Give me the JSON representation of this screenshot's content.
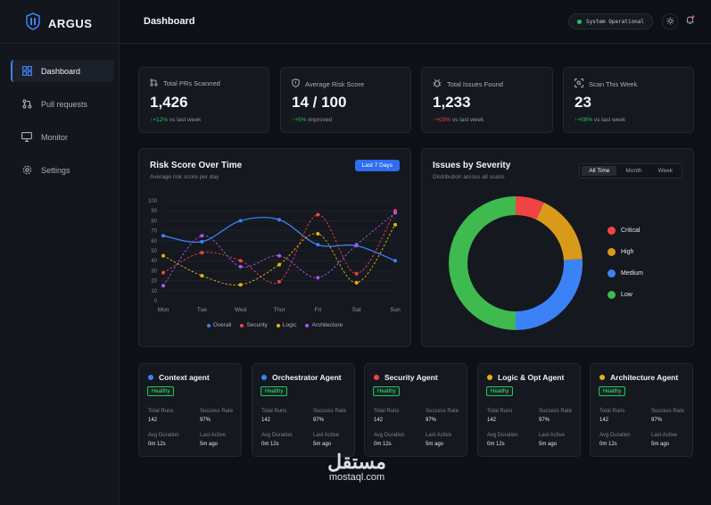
{
  "app": {
    "brand": "ARGUS"
  },
  "sidebar": {
    "items": [
      {
        "label": "Dashboard",
        "icon": "grid-icon",
        "active": true
      },
      {
        "label": "Pull requests",
        "icon": "git-pull-request-icon",
        "active": false
      },
      {
        "label": "Monitor",
        "icon": "monitor-icon",
        "active": false
      },
      {
        "label": "Settings",
        "icon": "gear-icon",
        "active": false
      }
    ]
  },
  "header": {
    "title": "Dashboard",
    "status": "System Operational"
  },
  "stats": [
    {
      "label": "Total PRs Scanned",
      "value": "1,426",
      "change": "+12%",
      "change_note": "vs last week",
      "direction": "up"
    },
    {
      "label": "Average Risk Score",
      "value": "14 / 100",
      "change": "+5%",
      "change_note": "improved",
      "direction": "up"
    },
    {
      "label": "Total Issues Found",
      "value": "1,233",
      "change": "+03%",
      "change_note": "vs last week",
      "direction": "down"
    },
    {
      "label": "Scan This Week",
      "value": "23",
      "change": "+08%",
      "change_note": "vs last week",
      "direction": "up"
    }
  ],
  "risk_panel": {
    "title": "Risk Score Over Time",
    "subtitle": "Average risk score per day",
    "range": "Last 7 Days"
  },
  "severity_panel": {
    "title": "Issues by Severity",
    "subtitle": "Distribution across all scans",
    "tabs": [
      "All Time",
      "Month",
      "Week"
    ],
    "active_tab": "All Time"
  },
  "chart_data": [
    {
      "type": "line",
      "title": "Risk Score Over Time",
      "categories": [
        "Mon",
        "Tue",
        "Wed",
        "Thur",
        "Fri",
        "Sat",
        "Sun"
      ],
      "yticks": [
        0,
        10,
        20,
        30,
        40,
        50,
        60,
        70,
        80,
        90,
        100
      ],
      "ylim": [
        0,
        100
      ],
      "series": [
        {
          "name": "Overall",
          "color": "#3b82f6",
          "dashed": false,
          "values": [
            65,
            59,
            80,
            81,
            56,
            55,
            40
          ]
        },
        {
          "name": "Security",
          "color": "#ef4444",
          "dashed": true,
          "values": [
            28,
            48,
            40,
            19,
            86,
            27,
            90
          ]
        },
        {
          "name": "Logic",
          "color": "#eab308",
          "dashed": true,
          "values": [
            45,
            25,
            16,
            36,
            67,
            18,
            76
          ]
        },
        {
          "name": "Architecture",
          "color": "#a855f7",
          "dashed": true,
          "values": [
            15,
            65,
            34,
            45,
            23,
            56,
            88
          ]
        }
      ],
      "legend": "bottom",
      "grid": true
    },
    {
      "type": "pie",
      "title": "Issues by Severity",
      "donut": true,
      "slices": [
        {
          "name": "Critical",
          "value": 7,
          "color": "#ef4444"
        },
        {
          "name": "High",
          "value": 17,
          "color": "#d99a1a"
        },
        {
          "name": "Medium",
          "value": 26,
          "color": "#3b82f6"
        },
        {
          "name": "Low",
          "value": 50,
          "color": "#3fba4f"
        }
      ],
      "legend": "right"
    }
  ],
  "agents": [
    {
      "name": "Context agent",
      "color": "#3b82f6",
      "status": "Healthy",
      "runs": "142",
      "success": "97%",
      "duration": "0m 12s",
      "last": "5m ago"
    },
    {
      "name": "Orchestrator Agent",
      "color": "#3b82f6",
      "status": "Healthy",
      "runs": "142",
      "success": "97%",
      "duration": "0m 12s",
      "last": "5m ago"
    },
    {
      "name": "Security Agent",
      "color": "#ef4444",
      "status": "Healthy",
      "runs": "142",
      "success": "97%",
      "duration": "0m 12s",
      "last": "5m ago"
    },
    {
      "name": "Logic & Opt Agent",
      "color": "#eab308",
      "status": "Healthy",
      "runs": "142",
      "success": "97%",
      "duration": "0m 12s",
      "last": "5m ago"
    },
    {
      "name": "Architecture Agent",
      "color": "#eab308",
      "status": "Healthy",
      "runs": "142",
      "success": "97%",
      "duration": "0m 12s",
      "last": "5m ago"
    }
  ],
  "agent_labels": {
    "runs": "Total Runs",
    "success": "Success Rate",
    "duration": "Avg Duration",
    "last": "Last Active"
  },
  "watermark": {
    "logo": "مستقل",
    "text": "mostaql.com"
  }
}
